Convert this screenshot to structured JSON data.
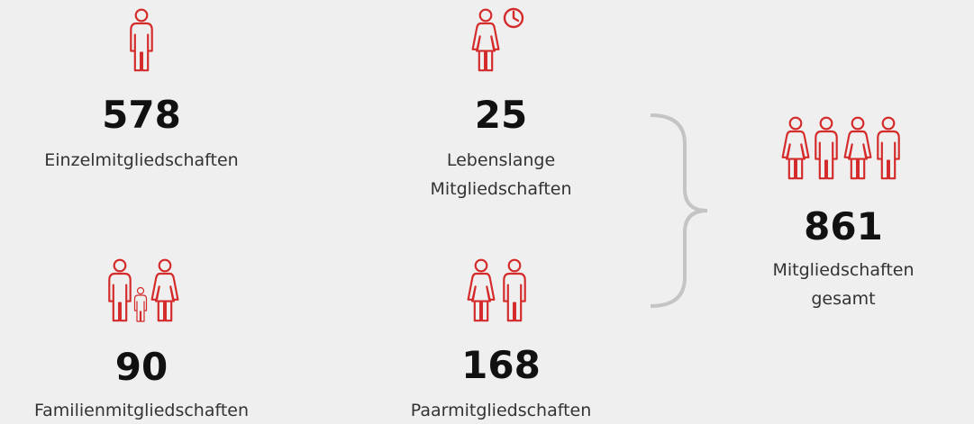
{
  "items": [
    {
      "value": 578,
      "label": [
        "Einzelmitgliedschaften"
      ]
    },
    {
      "value": 25,
      "label": [
        "Lebenslange",
        "Mitgliedschaften"
      ]
    },
    {
      "value": 90,
      "label": [
        "Familienmitgliedschaften"
      ]
    },
    {
      "value": 168,
      "label": [
        "Paarmitgliedschaften"
      ]
    }
  ],
  "total": {
    "value": 861,
    "label": [
      "Mitgliedschaften",
      "gesamt"
    ]
  }
}
